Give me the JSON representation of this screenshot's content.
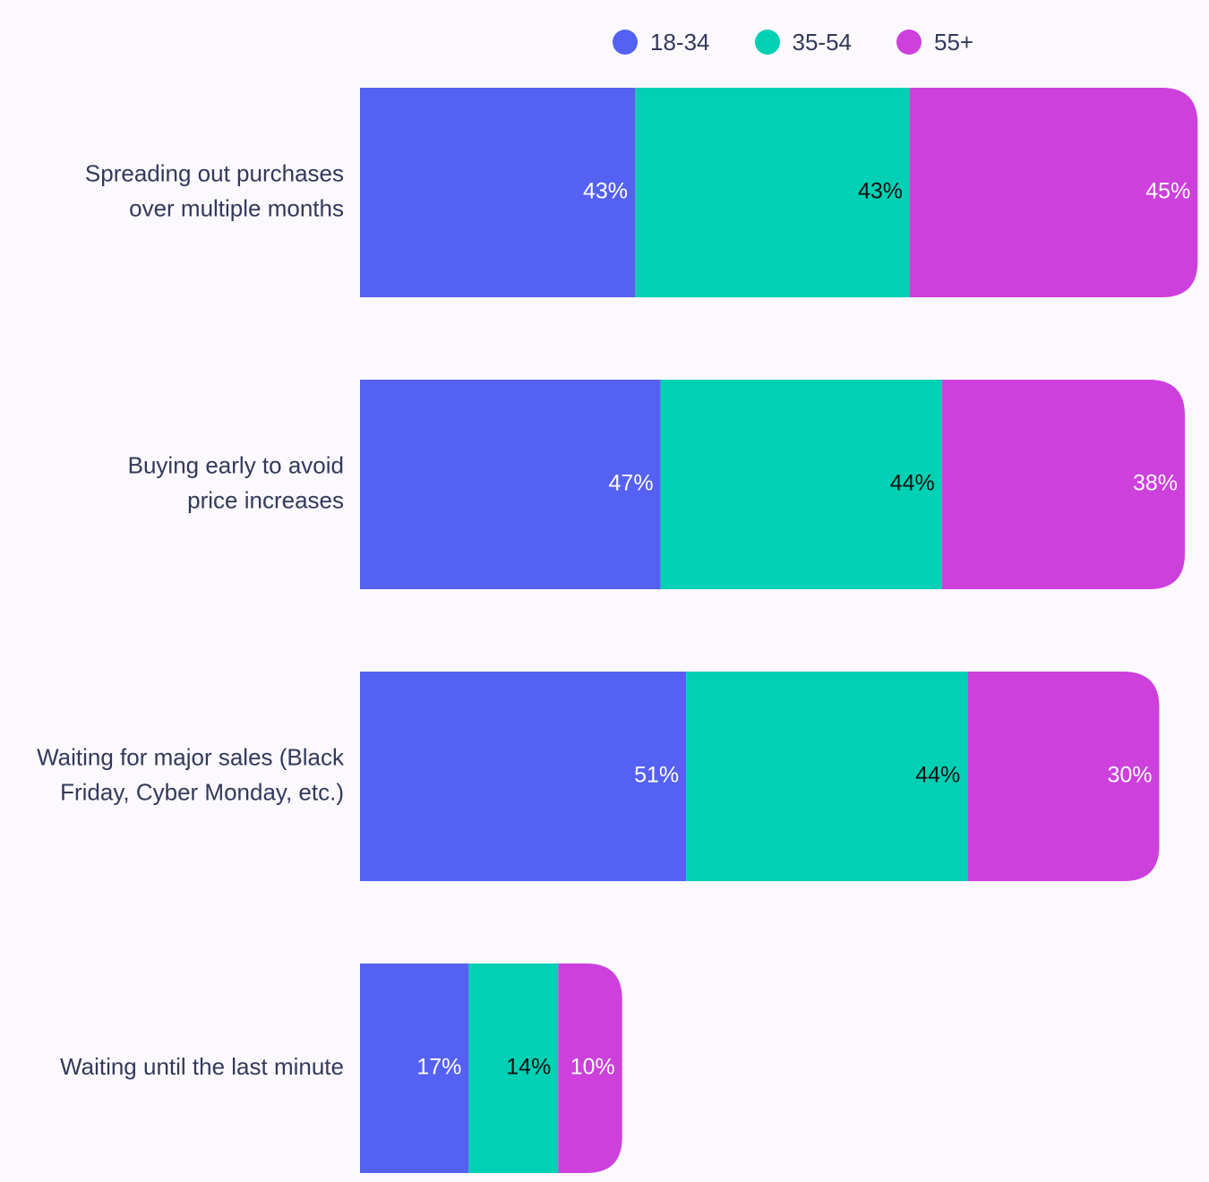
{
  "legend": {
    "items": [
      {
        "label": "18-34",
        "color": "#5561f2"
      },
      {
        "label": "35-54",
        "color": "#00d0b4"
      },
      {
        "label": "55+",
        "color": "#cd40dc"
      }
    ]
  },
  "chart_data": {
    "type": "bar",
    "orientation": "horizontal",
    "stacked": true,
    "title": "",
    "xlabel": "",
    "ylabel": "",
    "legend_position": "top",
    "grid": false,
    "unit": "%",
    "categories": [
      "Spreading out purchases over multiple months",
      "Buying early to avoid price increases",
      "Waiting for major sales (Black Friday, Cyber Monday, etc.)",
      "Waiting until the last minute"
    ],
    "category_lines": [
      [
        "Spreading out purchases",
        "over multiple months"
      ],
      [
        "Buying early to avoid",
        "price increases"
      ],
      [
        "Waiting for major sales (Black",
        "Friday, Cyber Monday, etc.)"
      ],
      [
        "Waiting until the last minute"
      ]
    ],
    "series": [
      {
        "name": "18-34",
        "color": "#5561f2",
        "label_color": "#ffffff",
        "values": [
          43,
          47,
          51,
          17
        ],
        "labels": [
          "43%",
          "47%",
          "51%",
          "17%"
        ]
      },
      {
        "name": "35-54",
        "color": "#00d0b4",
        "label_color": "#111111",
        "values": [
          43,
          44,
          44,
          14
        ],
        "labels": [
          "43%",
          "44%",
          "44%",
          "14%"
        ]
      },
      {
        "name": "55+",
        "color": "#cd40dc",
        "label_color": "#ffffff",
        "values": [
          45,
          38,
          30,
          10
        ],
        "labels": [
          "45%",
          "38%",
          "30%",
          "10%"
        ]
      }
    ]
  }
}
